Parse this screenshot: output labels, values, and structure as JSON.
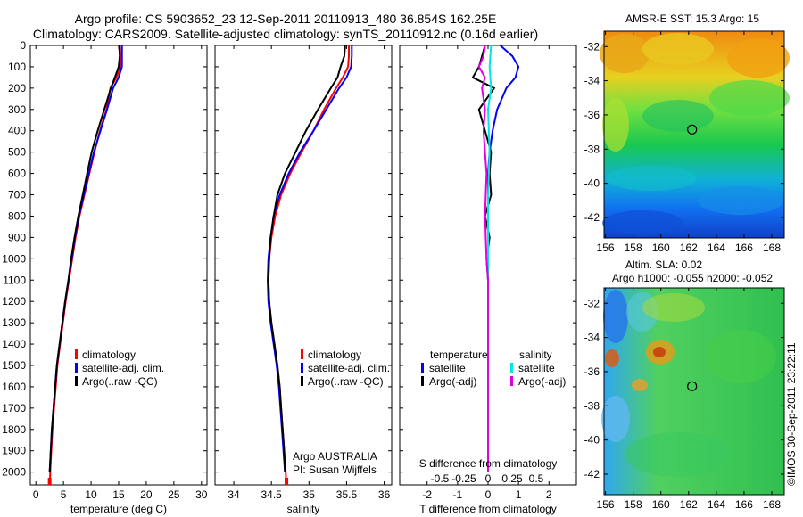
{
  "header": {
    "line1": "Argo profile: CS 5903652_23 12-Sep-2011 20110913_480 36.854S 162.25E",
    "line2": "Climatology: CARS2009. Satellite-adjusted climatology: synTS_20110912.nc (0.16d earlier)"
  },
  "colors": {
    "climatology": "#ff0000",
    "satellite": "#0000ff",
    "argo": "#000000",
    "sat_salinity": "#00e5e5",
    "argo_salinity": "#e000e0"
  },
  "credit": "©IMOS 30-Sep-2011 23:22:11",
  "chart_data": [
    {
      "type": "line",
      "panel": "temperature",
      "xlabel": "temperature (deg C)",
      "ylabel": "",
      "xlim": [
        -1,
        31
      ],
      "ylim": [
        2060,
        0
      ],
      "xticks": [
        0,
        5,
        10,
        15,
        20,
        25,
        30
      ],
      "yticks": [
        0,
        100,
        200,
        300,
        400,
        500,
        600,
        700,
        800,
        900,
        1000,
        1100,
        1200,
        1300,
        1400,
        1500,
        1600,
        1700,
        1800,
        1900,
        2000
      ],
      "legend": {
        "position": "bottom-right",
        "entries": [
          "climatology",
          "satellite-adj. clim.",
          "Argo(..raw -QC)"
        ]
      },
      "series": [
        {
          "name": "climatology",
          "color": "#ff0000",
          "points": [
            [
              15.2,
              0
            ],
            [
              15.3,
              50
            ],
            [
              15.3,
              100
            ],
            [
              14.6,
              150
            ],
            [
              13.5,
              200
            ],
            [
              12.8,
              300
            ],
            [
              11.6,
              400
            ],
            [
              10.6,
              500
            ],
            [
              9.7,
              600
            ],
            [
              8.8,
              700
            ],
            [
              7.9,
              800
            ],
            [
              7.2,
              900
            ],
            [
              6.6,
              1000
            ],
            [
              6.0,
              1100
            ],
            [
              5.4,
              1200
            ],
            [
              4.9,
              1300
            ],
            [
              4.4,
              1400
            ],
            [
              3.9,
              1500
            ],
            [
              3.6,
              1600
            ],
            [
              3.3,
              1700
            ],
            [
              3.0,
              1800
            ],
            [
              2.8,
              1900
            ],
            [
              2.6,
              2000
            ],
            [
              2.5,
              2060
            ]
          ]
        },
        {
          "name": "satellite-adj. clim.",
          "color": "#0000ff",
          "points": [
            [
              15.6,
              0
            ],
            [
              15.6,
              50
            ],
            [
              15.6,
              100
            ],
            [
              15.0,
              150
            ],
            [
              14.0,
              200
            ],
            [
              12.9,
              300
            ],
            [
              11.7,
              400
            ],
            [
              10.5,
              500
            ],
            [
              9.6,
              600
            ],
            [
              8.7,
              700
            ],
            [
              7.8,
              800
            ],
            [
              7.1,
              900
            ],
            [
              6.5,
              1000
            ],
            [
              5.9,
              1100
            ],
            [
              5.3,
              1200
            ],
            [
              4.8,
              1300
            ],
            [
              4.3,
              1400
            ],
            [
              3.8,
              1500
            ],
            [
              3.5,
              1600
            ],
            [
              3.2,
              1700
            ],
            [
              2.9,
              1800
            ],
            [
              2.7,
              1900
            ],
            [
              2.5,
              2000
            ]
          ]
        },
        {
          "name": "Argo(..raw -QC)",
          "color": "#000000",
          "points": [
            [
              15.1,
              0
            ],
            [
              15.2,
              50
            ],
            [
              15.0,
              100
            ],
            [
              14.3,
              150
            ],
            [
              13.6,
              200
            ],
            [
              12.4,
              300
            ],
            [
              11.2,
              400
            ],
            [
              10.1,
              500
            ],
            [
              9.3,
              600
            ],
            [
              8.5,
              700
            ],
            [
              7.7,
              800
            ],
            [
              7.0,
              900
            ],
            [
              6.4,
              1000
            ],
            [
              5.9,
              1100
            ],
            [
              5.3,
              1200
            ],
            [
              4.8,
              1300
            ],
            [
              4.3,
              1400
            ],
            [
              3.8,
              1500
            ],
            [
              3.5,
              1600
            ],
            [
              3.2,
              1700
            ],
            [
              2.9,
              1800
            ],
            [
              2.7,
              1900
            ],
            [
              2.5,
              2000
            ]
          ]
        }
      ]
    },
    {
      "type": "line",
      "panel": "salinity",
      "xlabel": "salinity",
      "ylabel": "",
      "xlim": [
        33.75,
        36.1
      ],
      "ylim": [
        2060,
        0
      ],
      "xticks": [
        34,
        34.5,
        35,
        35.5,
        36
      ],
      "xticklabels": [
        "34",
        "34.5",
        "35",
        "35.5",
        "36"
      ],
      "legend": {
        "position": "bottom-right",
        "entries": [
          "climatology",
          "satellite-adj. clim.",
          "Argo(..raw -QC)"
        ]
      },
      "annotation": [
        "Argo AUSTRALIA",
        "PI: Susan Wijffels"
      ],
      "series": [
        {
          "name": "climatology",
          "color": "#ff0000",
          "points": [
            [
              35.53,
              0
            ],
            [
              35.53,
              50
            ],
            [
              35.52,
              100
            ],
            [
              35.45,
              150
            ],
            [
              35.36,
              200
            ],
            [
              35.2,
              300
            ],
            [
              35.06,
              400
            ],
            [
              34.9,
              500
            ],
            [
              34.75,
              600
            ],
            [
              34.63,
              700
            ],
            [
              34.55,
              800
            ],
            [
              34.5,
              900
            ],
            [
              34.47,
              1000
            ],
            [
              34.46,
              1100
            ],
            [
              34.47,
              1200
            ],
            [
              34.5,
              1300
            ],
            [
              34.54,
              1400
            ],
            [
              34.58,
              1500
            ],
            [
              34.61,
              1600
            ],
            [
              34.63,
              1700
            ],
            [
              34.65,
              1800
            ],
            [
              34.67,
              1900
            ],
            [
              34.69,
              2000
            ],
            [
              34.7,
              2060
            ]
          ]
        },
        {
          "name": "satellite-adj. clim.",
          "color": "#0000ff",
          "points": [
            [
              35.57,
              0
            ],
            [
              35.57,
              50
            ],
            [
              35.56,
              100
            ],
            [
              35.5,
              150
            ],
            [
              35.4,
              200
            ],
            [
              35.23,
              300
            ],
            [
              35.06,
              400
            ],
            [
              34.88,
              500
            ],
            [
              34.73,
              600
            ],
            [
              34.61,
              700
            ],
            [
              34.53,
              800
            ],
            [
              34.49,
              900
            ],
            [
              34.46,
              1000
            ],
            [
              34.45,
              1100
            ],
            [
              34.46,
              1200
            ],
            [
              34.49,
              1300
            ],
            [
              34.53,
              1400
            ],
            [
              34.57,
              1500
            ],
            [
              34.6,
              1600
            ],
            [
              34.62,
              1700
            ],
            [
              34.64,
              1800
            ],
            [
              34.66,
              1900
            ],
            [
              34.68,
              2000
            ]
          ]
        },
        {
          "name": "Argo(..raw -QC)",
          "color": "#000000",
          "points": [
            [
              35.48,
              0
            ],
            [
              35.47,
              50
            ],
            [
              35.42,
              100
            ],
            [
              35.38,
              150
            ],
            [
              35.29,
              200
            ],
            [
              35.12,
              300
            ],
            [
              34.96,
              400
            ],
            [
              34.82,
              500
            ],
            [
              34.68,
              600
            ],
            [
              34.58,
              700
            ],
            [
              34.53,
              800
            ],
            [
              34.49,
              900
            ],
            [
              34.47,
              1000
            ],
            [
              34.46,
              1100
            ],
            [
              34.47,
              1200
            ],
            [
              34.5,
              1300
            ],
            [
              34.54,
              1400
            ],
            [
              34.58,
              1500
            ],
            [
              34.61,
              1600
            ],
            [
              34.63,
              1700
            ],
            [
              34.65,
              1800
            ],
            [
              34.67,
              1900
            ],
            [
              34.68,
              2000
            ]
          ]
        }
      ]
    },
    {
      "type": "line",
      "panel": "difference",
      "xlabel": "T difference from climatology",
      "toplabel": "S difference from climatology",
      "xlim": [
        -2.9,
        2.9
      ],
      "ylim": [
        2060,
        0
      ],
      "xticks": [
        -2,
        -1,
        0,
        1,
        2
      ],
      "sticks": [
        -0.5,
        -0.25,
        0,
        0.25,
        0.5
      ],
      "sticklabels": [
        "-0.5",
        "-0.25",
        "0",
        "0.25",
        "0.5"
      ],
      "legend": {
        "position": "bottom",
        "temperature_heading": "temperature",
        "salinity_heading": "salinity",
        "entries": [
          "satellite",
          "Argo(-adj)",
          "satellite",
          "Argo(-adj)"
        ]
      },
      "series": [
        {
          "name": "temperature satellite",
          "color": "#0000ff",
          "points": [
            [
              0.4,
              0
            ],
            [
              0.8,
              50
            ],
            [
              1.0,
              100
            ],
            [
              0.9,
              150
            ],
            [
              0.6,
              200
            ],
            [
              0.3,
              300
            ],
            [
              0.15,
              400
            ],
            [
              0.05,
              500
            ],
            [
              0,
              600
            ],
            [
              0,
              800
            ],
            [
              0,
              1000
            ],
            [
              0,
              2000
            ]
          ]
        },
        {
          "name": "temperature Argo(-adj)",
          "color": "#000000",
          "points": [
            [
              -0.1,
              0
            ],
            [
              -0.2,
              50
            ],
            [
              -0.3,
              100
            ],
            [
              -0.5,
              150
            ],
            [
              0.2,
              200
            ],
            [
              -0.3,
              300
            ],
            [
              -0.1,
              400
            ],
            [
              0.1,
              500
            ],
            [
              0.05,
              600
            ],
            [
              0.1,
              700
            ],
            [
              -0.1,
              800
            ],
            [
              0.05,
              900
            ],
            [
              -0.05,
              1000
            ],
            [
              0,
              1100
            ],
            [
              0,
              1300
            ],
            [
              0,
              2000
            ]
          ]
        },
        {
          "name": "salinity satellite",
          "color": "#00e5e5",
          "points": [
            [
              0.1,
              0
            ],
            [
              0.05,
              100
            ],
            [
              0.1,
              200
            ],
            [
              0,
              300
            ],
            [
              0.05,
              500
            ],
            [
              0,
              700
            ],
            [
              0,
              1000
            ],
            [
              0,
              2000
            ]
          ]
        },
        {
          "name": "salinity Argo(-adj)",
          "color": "#e000e0",
          "points": [
            [
              -0.1,
              0
            ],
            [
              -0.15,
              50
            ],
            [
              -0.3,
              100
            ],
            [
              -0.1,
              150
            ],
            [
              -0.2,
              200
            ],
            [
              -0.1,
              300
            ],
            [
              -0.15,
              400
            ],
            [
              -0.1,
              500
            ],
            [
              -0.05,
              600
            ],
            [
              -0.1,
              800
            ],
            [
              -0.05,
              1000
            ],
            [
              0,
              1100
            ],
            [
              0,
              2000
            ]
          ]
        }
      ]
    },
    {
      "type": "heatmap",
      "panel": "sst-map",
      "title": "AMSR-E SST: 15.3 Argo: 15",
      "xlim": [
        155.9,
        168.9
      ],
      "ylim": [
        -43.2,
        -31.1
      ],
      "xticks": [
        156,
        158,
        160,
        162,
        164,
        166,
        168
      ],
      "yticks": [
        -32,
        -34,
        -36,
        -38,
        -40,
        -42
      ],
      "marker": [
        162.25,
        -36.854
      ]
    },
    {
      "type": "heatmap",
      "panel": "sla-map",
      "title": "Altim. SLA: 0.02",
      "subtitle": "Argo h1000: -0.055 h2000: -0.052",
      "xlim": [
        155.9,
        168.9
      ],
      "ylim": [
        -43.2,
        -31.1
      ],
      "xticks": [
        156,
        158,
        160,
        162,
        164,
        166,
        168
      ],
      "yticks": [
        -32,
        -34,
        -36,
        -38,
        -40,
        -42
      ],
      "marker": [
        162.25,
        -36.854
      ]
    }
  ]
}
